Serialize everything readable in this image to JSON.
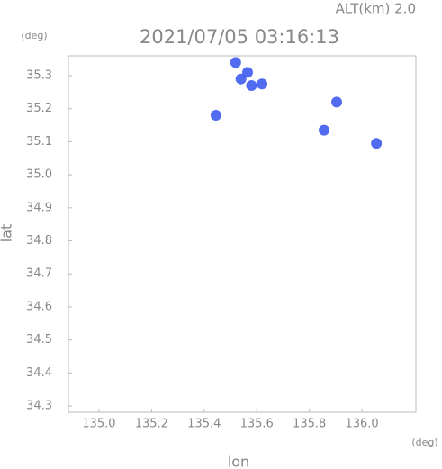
{
  "chart_data": {
    "type": "scatter",
    "title": "2021/07/05 03:16:13",
    "annotation": "ALT(km) 2.0",
    "x_label": "lon",
    "x_unit": "(deg)",
    "y_label": "lat",
    "y_unit": "(deg)",
    "color": "#3f5cf0",
    "x": [
      135.52,
      135.54,
      135.565,
      135.58,
      135.62,
      135.445,
      135.856,
      135.904,
      136.055
    ],
    "y": [
      35.34,
      35.29,
      35.31,
      35.27,
      35.275,
      35.18,
      35.135,
      35.22,
      35.095
    ],
    "xlim": [
      134.884,
      136.205
    ],
    "ylim": [
      34.281,
      35.36
    ],
    "xticks": [
      {
        "value": 135,
        "label": "135.0"
      },
      135.2,
      135.4,
      135.6,
      135.8,
      {
        "value": 136,
        "label": "136.0"
      }
    ],
    "yticks": [
      34.3,
      34.4,
      34.5,
      34.6,
      34.7,
      34.8,
      34.9,
      {
        "value": 35,
        "label": "35.0"
      },
      35.1,
      35.2,
      35.3
    ]
  }
}
